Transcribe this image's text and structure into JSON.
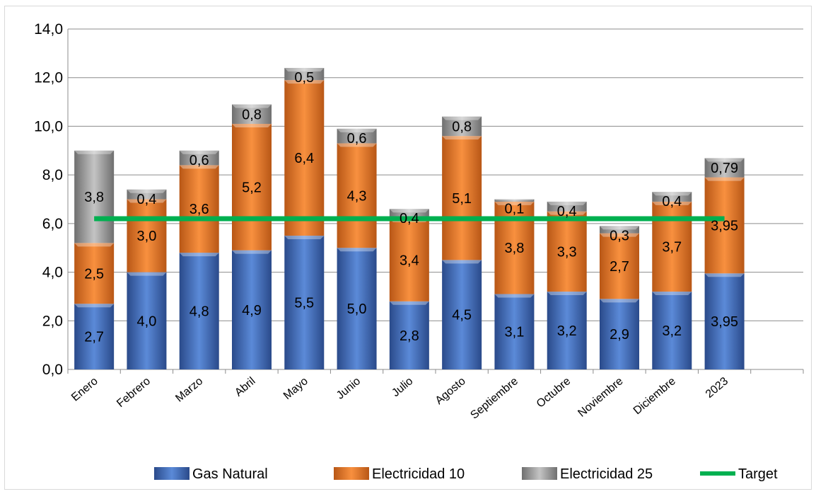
{
  "chart_data": {
    "type": "bar",
    "stacked": true,
    "categories": [
      "Enero",
      "Febrero",
      "Marzo",
      "Abril",
      "Mayo",
      "Junio",
      "Julio",
      "Agosto",
      "Septiembre",
      "Octubre",
      "Noviembre",
      "Diciembre",
      "2023"
    ],
    "series": [
      {
        "name": "Gas Natural",
        "color": "#4472c4",
        "values": [
          2.7,
          4.0,
          4.8,
          4.9,
          5.5,
          5.0,
          2.8,
          4.5,
          3.1,
          3.2,
          2.9,
          3.2,
          3.95
        ],
        "labels": [
          "2,7",
          "4,0",
          "4,8",
          "4,9",
          "5,5",
          "5,0",
          "2,8",
          "4,5",
          "3,1",
          "3,2",
          "2,9",
          "3,2",
          "3,95"
        ]
      },
      {
        "name": "Electricidad 10",
        "color": "#ed7d31",
        "values": [
          2.5,
          3.0,
          3.6,
          5.2,
          6.4,
          4.3,
          3.4,
          5.1,
          3.8,
          3.3,
          2.7,
          3.7,
          3.95
        ],
        "labels": [
          "2,5",
          "3,0",
          "3,6",
          "5,2",
          "6,4",
          "4,3",
          "3,4",
          "5,1",
          "3,8",
          "3,3",
          "2,7",
          "3,7",
          "3,95"
        ]
      },
      {
        "name": "Electricidad 25",
        "color": "#a5a5a5",
        "values": [
          3.8,
          0.4,
          0.6,
          0.8,
          0.5,
          0.6,
          0.4,
          0.8,
          0.1,
          0.4,
          0.3,
          0.4,
          0.79
        ],
        "labels": [
          "3,8",
          "0,4",
          "0,6",
          "0,8",
          "0,5",
          "0,6",
          "0,4",
          "0,8",
          "0,1",
          "0,4",
          "0,3",
          "0,4",
          "0,79"
        ]
      }
    ],
    "target": {
      "name": "Target",
      "value": 6.2,
      "color": "#00b050"
    },
    "yticks": [
      "0,0",
      "2,0",
      "4,0",
      "6,0",
      "8,0",
      "10,0",
      "12,0",
      "14,0"
    ],
    "ylim": [
      0,
      14
    ],
    "grid": true,
    "legend_position": "bottom",
    "title": "",
    "xlabel": "",
    "ylabel": ""
  }
}
